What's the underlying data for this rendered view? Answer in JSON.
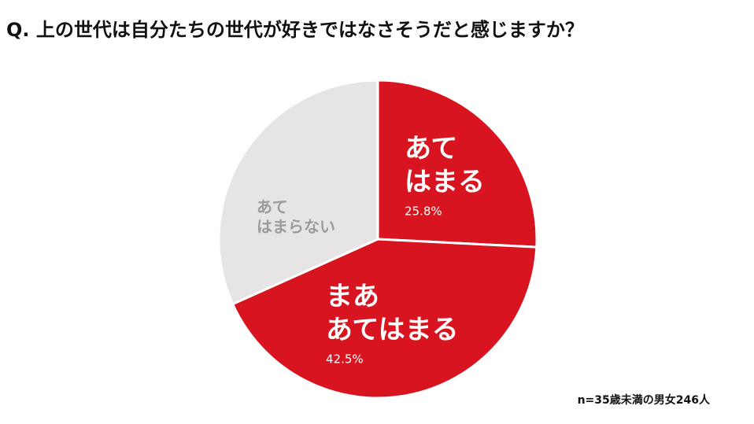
{
  "question": "Q. 上の世代は自分たちの世代が好きではなさそうだと感じますか？",
  "note": "n=35歳未満の男女246人",
  "chart_data": {
    "type": "pie",
    "slices": [
      {
        "label_lines": [
          "あて",
          "はまる"
        ],
        "value": 25.8,
        "value_label": "25.8%",
        "color": "#d7141f",
        "text_color": "#ffffff"
      },
      {
        "label_lines": [
          "まあ",
          "あてはまる"
        ],
        "value": 42.5,
        "value_label": "42.5%",
        "color": "#d7141f",
        "text_color": "#ffffff"
      },
      {
        "label_lines": [
          "あて",
          "はまらない"
        ],
        "value": 31.7,
        "value_label": "",
        "color": "#e6e4e5",
        "text_color": "#9b9b9b"
      }
    ],
    "separator_color": "#ffffff"
  }
}
